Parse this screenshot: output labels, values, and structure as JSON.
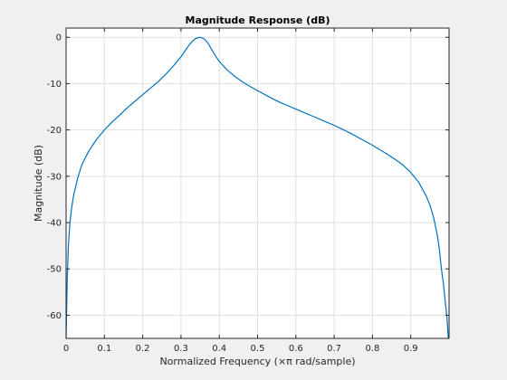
{
  "chart_data": {
    "type": "line",
    "title": "Magnitude Response (dB)",
    "xlabel": "Normalized Frequency (×π rad/sample)",
    "ylabel": "Magnitude (dB)",
    "xlim": [
      0,
      1
    ],
    "ylim": [
      -65,
      2
    ],
    "xticks": [
      0,
      0.1,
      0.2,
      0.3,
      0.4,
      0.5,
      0.6,
      0.7,
      0.8,
      0.9
    ],
    "xtick_labels": [
      "0",
      "0.1",
      "0.2",
      "0.3",
      "0.4",
      "0.5",
      "0.6",
      "0.7",
      "0.8",
      "0.9"
    ],
    "yticks": [
      0,
      -10,
      -20,
      -30,
      -40,
      -50,
      -60
    ],
    "ytick_labels": [
      "0",
      "-10",
      "-20",
      "-30",
      "-40",
      "-50",
      "-60"
    ],
    "grid": true,
    "legend": "none",
    "colors": {
      "line": "#0072bd",
      "plot_background": "#ffffff",
      "figure_background": "#f0f0f0",
      "grid": "#dfdfdf",
      "axis": "#262626"
    },
    "series": [
      {
        "x": [
          0,
          0.003,
          0.006,
          0.01,
          0.015,
          0.02,
          0.03,
          0.04,
          0.05,
          0.06,
          0.07,
          0.08,
          0.09,
          0.1,
          0.12,
          0.14,
          0.16,
          0.18,
          0.2,
          0.22,
          0.24,
          0.26,
          0.28,
          0.3,
          0.31,
          0.32,
          0.33,
          0.34,
          0.35,
          0.36,
          0.37,
          0.38,
          0.39,
          0.4,
          0.42,
          0.44,
          0.46,
          0.48,
          0.5,
          0.52,
          0.54,
          0.56,
          0.58,
          0.6,
          0.62,
          0.64,
          0.66,
          0.68,
          0.7,
          0.72,
          0.74,
          0.76,
          0.78,
          0.8,
          0.82,
          0.84,
          0.86,
          0.88,
          0.9,
          0.92,
          0.94,
          0.95,
          0.96,
          0.97,
          0.975,
          0.98,
          0.985,
          0.99,
          0.995,
          0.998
        ],
        "y": [
          -65,
          -52,
          -45,
          -40,
          -36.5,
          -34,
          -30.5,
          -27.8,
          -26,
          -24.5,
          -23.2,
          -22,
          -21,
          -20,
          -18.3,
          -16.8,
          -15.2,
          -13.8,
          -12.4,
          -11,
          -9.6,
          -8,
          -6.2,
          -4.2,
          -3,
          -1.8,
          -0.8,
          -0.2,
          0,
          -0.3,
          -1.2,
          -2.6,
          -4,
          -5.2,
          -7,
          -8.4,
          -9.6,
          -10.6,
          -11.5,
          -12.4,
          -13.3,
          -14.1,
          -14.8,
          -15.5,
          -16.2,
          -16.9,
          -17.6,
          -18.3,
          -19,
          -19.8,
          -20.6,
          -21.5,
          -22.4,
          -23.3,
          -24.3,
          -25.3,
          -26.4,
          -27.6,
          -29.2,
          -31.2,
          -34.2,
          -36.2,
          -39,
          -43,
          -46,
          -50,
          -53,
          -57,
          -61,
          -65
        ]
      }
    ]
  }
}
